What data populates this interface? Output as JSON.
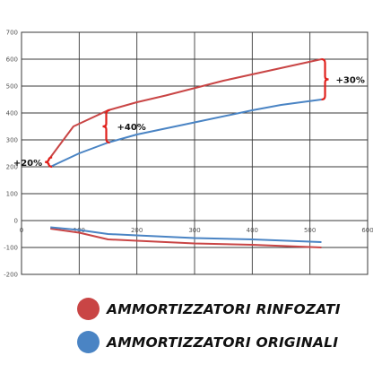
{
  "chart_data": {
    "type": "line",
    "title": "",
    "xlabel": "",
    "ylabel": "",
    "xlim": [
      0,
      600
    ],
    "ylim": [
      -200,
      700
    ],
    "x_ticks": [
      0,
      100,
      200,
      300,
      400,
      500,
      600
    ],
    "y_ticks": [
      -200,
      -100,
      0,
      100,
      200,
      300,
      400,
      500,
      600,
      700
    ],
    "grid": true,
    "series": [
      {
        "name": "AMMORTIZZATORI RINFOZATI",
        "color": "#c94545",
        "upper": {
          "x": [
            50,
            90,
            150,
            200,
            250,
            350,
            520
          ],
          "y": [
            235,
            350,
            410,
            440,
            465,
            520,
            600
          ]
        },
        "lower": {
          "x": [
            50,
            100,
            150,
            200,
            300,
            400,
            520
          ],
          "y": [
            -30,
            -45,
            -70,
            -75,
            -85,
            -90,
            -100
          ]
        }
      },
      {
        "name": "AMMORTIZZATORI ORIGINALI",
        "color": "#4a84c4",
        "upper": {
          "x": [
            50,
            100,
            150,
            200,
            300,
            400,
            450,
            520
          ],
          "y": [
            200,
            250,
            290,
            320,
            365,
            410,
            430,
            450
          ]
        },
        "lower": {
          "x": [
            50,
            100,
            150,
            200,
            300,
            400,
            520
          ],
          "y": [
            -25,
            -35,
            -50,
            -55,
            -65,
            -70,
            -80
          ]
        }
      }
    ],
    "annotations": [
      {
        "text": "+20%",
        "x": 50,
        "y_from": 200,
        "y_to": 235
      },
      {
        "text": "+40%",
        "x": 150,
        "y_from": 290,
        "y_to": 410
      },
      {
        "text": "+30%",
        "x": 520,
        "y_from": 450,
        "y_to": 600
      }
    ],
    "bracket_color": "#e0201c"
  }
}
